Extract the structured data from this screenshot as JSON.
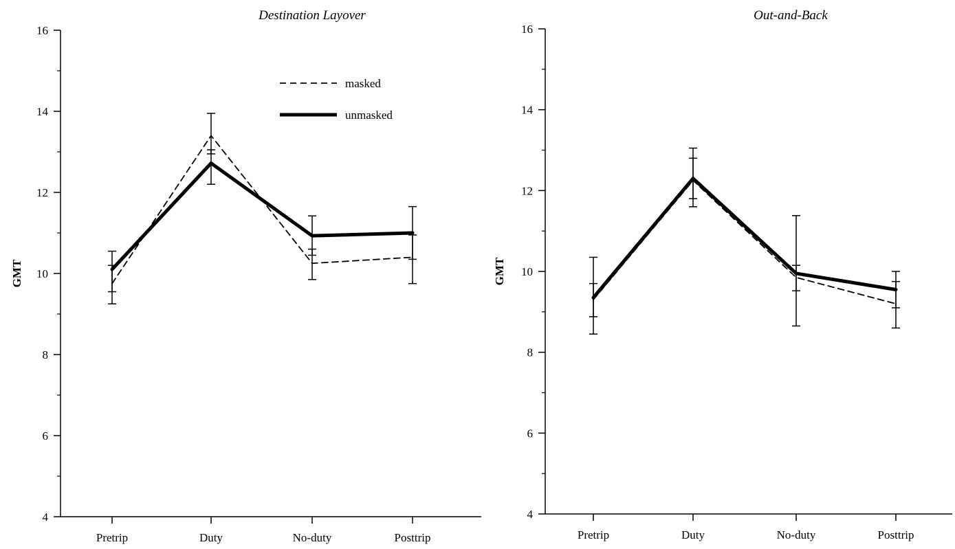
{
  "chart_data": [
    {
      "type": "line",
      "title": "Destination Layover",
      "xlabel": "",
      "ylabel": "GMT",
      "ylim": [
        4,
        16
      ],
      "yticks": [
        4,
        6,
        8,
        10,
        12,
        14,
        16
      ],
      "categories": [
        "Pretrip",
        "Duty",
        "No-duty",
        "Posttrip"
      ],
      "legend": {
        "position": "top-right",
        "entries": [
          "masked",
          "unmasked"
        ]
      },
      "series": [
        {
          "name": "masked",
          "style": "dashed",
          "values": [
            9.75,
            13.4,
            10.25,
            10.4
          ],
          "err_low": [
            9.25,
            12.95,
            9.85,
            9.75
          ],
          "err_high": [
            10.2,
            13.95,
            10.6,
            10.95
          ]
        },
        {
          "name": "unmasked",
          "style": "solid",
          "values": [
            10.1,
            12.72,
            10.93,
            11.0
          ],
          "err_low": [
            9.55,
            12.2,
            10.45,
            10.35
          ],
          "err_high": [
            10.55,
            13.05,
            11.42,
            11.65
          ]
        }
      ]
    },
    {
      "type": "line",
      "title": "Out-and-Back",
      "xlabel": "",
      "ylabel": "GMT",
      "ylim": [
        4,
        16
      ],
      "yticks": [
        4,
        6,
        8,
        10,
        12,
        14,
        16
      ],
      "categories": [
        "Pretrip",
        "Duty",
        "No-duty",
        "Posttrip"
      ],
      "series": [
        {
          "name": "masked",
          "style": "dashed",
          "values": [
            9.3,
            12.25,
            9.85,
            9.2
          ],
          "err_low": [
            8.45,
            11.6,
            8.65,
            8.6
          ],
          "err_high": [
            10.35,
            12.8,
            10.15,
            9.75
          ]
        },
        {
          "name": "unmasked",
          "style": "solid",
          "values": [
            9.35,
            12.3,
            9.95,
            9.55
          ],
          "err_low": [
            8.88,
            11.8,
            9.52,
            9.1
          ],
          "err_high": [
            9.7,
            13.05,
            11.38,
            10.0
          ]
        }
      ]
    }
  ]
}
